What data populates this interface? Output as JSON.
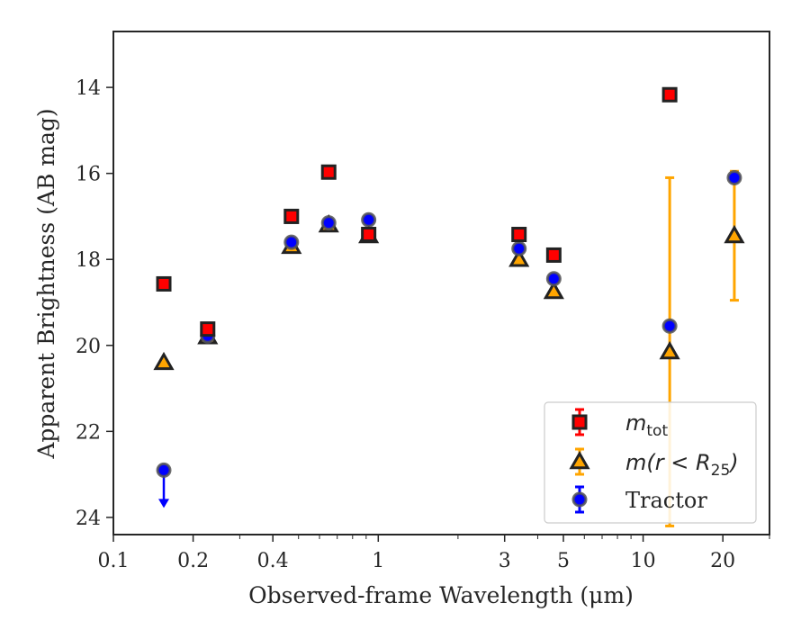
{
  "chart_data": {
    "type": "scatter",
    "xlabel": "Observed-frame Wavelength (μm)",
    "ylabel": "Apparent Brightness (AB mag)",
    "xscale": "log",
    "xlim": [
      0.1,
      30
    ],
    "ylim": [
      24.4,
      12.7
    ],
    "y_inverted": true,
    "grid": false,
    "legend_position": "lower-right",
    "x_ticks": [
      0.1,
      0.2,
      0.4,
      1,
      3,
      5,
      10,
      20
    ],
    "x_tick_labels": [
      "0.1",
      "0.2",
      "0.4",
      "1",
      "3",
      "5",
      "10",
      "20"
    ],
    "y_ticks": [
      14,
      16,
      18,
      20,
      22,
      24
    ],
    "y_tick_labels": [
      "14",
      "16",
      "18",
      "20",
      "22",
      "24"
    ],
    "series": [
      {
        "legend_main": "m",
        "legend_sub": "tot",
        "marker": "square",
        "color": "#ff0000",
        "edge_color": "#222222",
        "errorbar_color": "#ff0000",
        "points": [
          {
            "x": 0.155,
            "y": 18.57
          },
          {
            "x": 0.227,
            "y": 19.62
          },
          {
            "x": 0.47,
            "y": 17.0
          },
          {
            "x": 0.65,
            "y": 15.97
          },
          {
            "x": 0.92,
            "y": 17.42
          },
          {
            "x": 3.4,
            "y": 17.42
          },
          {
            "x": 4.6,
            "y": 17.9
          },
          {
            "x": 12.6,
            "y": 14.17
          }
        ]
      },
      {
        "legend_main": "m(r < R",
        "legend_sub": "25",
        "legend_tail": ")",
        "marker": "triangle",
        "color": "#ffa500",
        "edge_color": "#222222",
        "errorbar_color": "#ffa500",
        "points": [
          {
            "x": 0.155,
            "y": 20.4
          },
          {
            "x": 0.227,
            "y": 19.8
          },
          {
            "x": 0.47,
            "y": 17.7
          },
          {
            "x": 0.65,
            "y": 17.2
          },
          {
            "x": 0.92,
            "y": 17.45
          },
          {
            "x": 3.4,
            "y": 18.0
          },
          {
            "x": 4.6,
            "y": 18.75
          },
          {
            "x": 12.6,
            "y": 20.15,
            "err_low": 16.1,
            "err_high": 24.2
          },
          {
            "x": 22.1,
            "y": 17.45,
            "err_low": 15.95,
            "err_high": 18.95
          }
        ]
      },
      {
        "legend_main": "Tractor",
        "marker": "circle",
        "color": "#0000ff",
        "edge_color": "#555555",
        "errorbar_color": "#0000ff",
        "points": [
          {
            "x": 0.155,
            "y": 22.9,
            "upper_limit": true
          },
          {
            "x": 0.227,
            "y": 19.78
          },
          {
            "x": 0.47,
            "y": 17.6
          },
          {
            "x": 0.65,
            "y": 17.15
          },
          {
            "x": 0.92,
            "y": 17.08
          },
          {
            "x": 3.4,
            "y": 17.75
          },
          {
            "x": 4.6,
            "y": 18.45
          },
          {
            "x": 12.6,
            "y": 19.55
          },
          {
            "x": 22.1,
            "y": 16.1
          }
        ]
      }
    ]
  }
}
